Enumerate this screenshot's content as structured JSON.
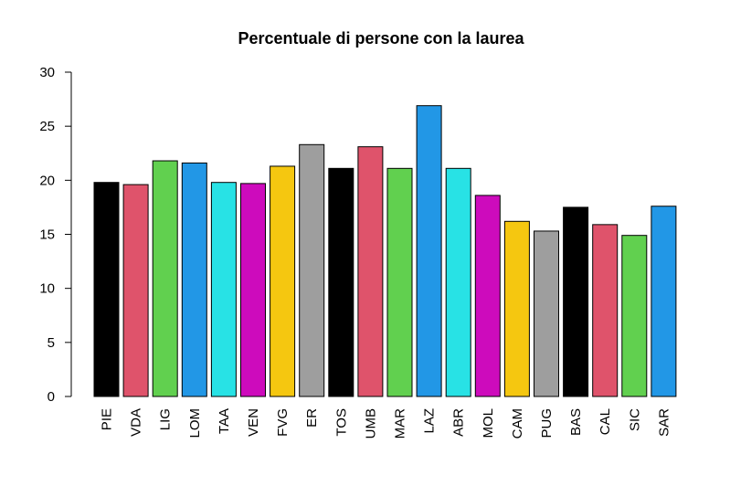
{
  "chart_data": {
    "type": "bar",
    "title": "Percentuale di persone con la laurea",
    "xlabel": "",
    "ylabel": "",
    "ylim": [
      0,
      30
    ],
    "yticks": [
      "0",
      "5",
      "10",
      "15",
      "20",
      "25",
      "30"
    ],
    "grid": false,
    "legend": "none",
    "categories": [
      "PIE",
      "VDA",
      "LIG",
      "LOM",
      "TAA",
      "VEN",
      "FVG",
      "ER",
      "TOS",
      "UMB",
      "MAR",
      "LAZ",
      "ABR",
      "MOL",
      "CAM",
      "PUG",
      "BAS",
      "CAL",
      "SIC",
      "SAR"
    ],
    "values": [
      19.8,
      19.6,
      21.8,
      21.6,
      19.8,
      19.7,
      21.3,
      23.3,
      21.1,
      23.1,
      21.1,
      26.9,
      21.1,
      18.6,
      16.2,
      15.3,
      17.5,
      15.9,
      14.9,
      17.6
    ],
    "colors": [
      "#000000",
      "#DF536B",
      "#61D04F",
      "#2297E6",
      "#28E2E5",
      "#CD0BBC",
      "#F5C710",
      "#9E9E9E",
      "#000000",
      "#DF536B",
      "#61D04F",
      "#2297E6",
      "#28E2E5",
      "#CD0BBC",
      "#F5C710",
      "#9E9E9E",
      "#000000",
      "#DF536B",
      "#61D04F",
      "#2297E6"
    ]
  }
}
